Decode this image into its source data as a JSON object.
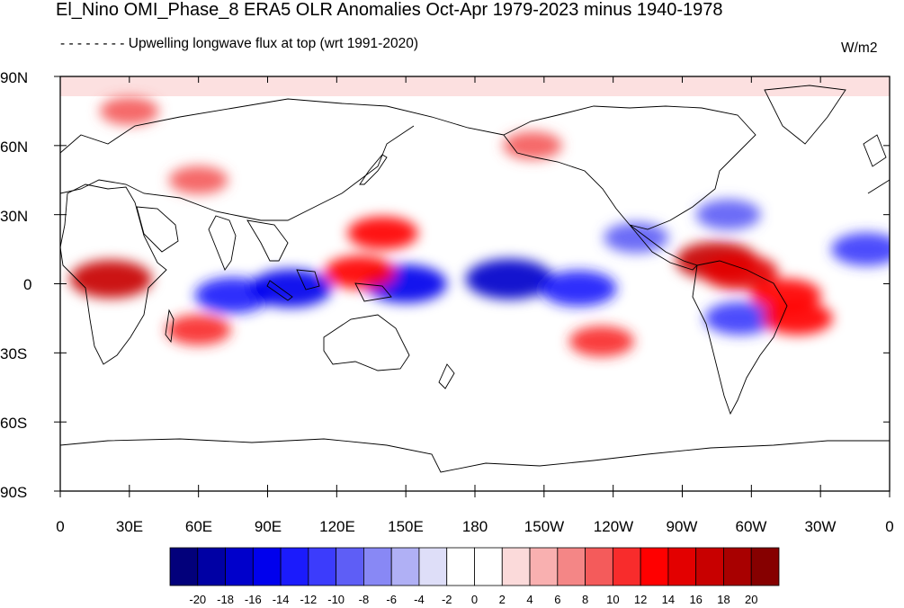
{
  "title": "El_Nino OMI_Phase_8 ERA5 OLR Anomalies Oct-Apr 1979-2023 minus 1940-1978",
  "subtitle": "- - - - - - - -  Upwelling longwave flux at top  (wrt 1991-2020)",
  "units": "W/m2",
  "lat_labels": [
    "90N",
    "60N",
    "30N",
    "0",
    "30S",
    "60S",
    "90S"
  ],
  "lon_labels": [
    "0",
    "30E",
    "60E",
    "90E",
    "120E",
    "150E",
    "180",
    "150W",
    "120W",
    "90W",
    "60W",
    "30W",
    "0"
  ],
  "colorbar": {
    "colors": [
      "#02007b",
      "#0000a4",
      "#0000cb",
      "#0000ed",
      "#1b1bfc",
      "#3c3cfc",
      "#5e5ef6",
      "#8888f5",
      "#b0b0f5",
      "#dedef8",
      "#ffffff",
      "#ffffff",
      "#fbdada",
      "#f9b0b0",
      "#f48686",
      "#f45b5b",
      "#f82c2c",
      "#ff0000",
      "#e30000",
      "#c80000",
      "#a80000",
      "#860000"
    ],
    "tick_labels": [
      "-20",
      "-18",
      "-16",
      "-14",
      "-12",
      "-10",
      "-8",
      "-6",
      "-4",
      "-2",
      "0",
      "2",
      "4",
      "6",
      "8",
      "10",
      "12",
      "14",
      "16",
      "18",
      "20"
    ]
  },
  "anomaly_features": [
    {
      "lon": 150,
      "lat": 0,
      "value": -16
    },
    {
      "lon": 195,
      "lat": 2,
      "value": -18
    },
    {
      "lon": 225,
      "lat": -2,
      "value": -14
    },
    {
      "lon": 75,
      "lat": -5,
      "value": -14
    },
    {
      "lon": 100,
      "lat": -2,
      "value": -16
    },
    {
      "lon": 250,
      "lat": 20,
      "value": -10
    },
    {
      "lon": 290,
      "lat": 30,
      "value": -10
    },
    {
      "lon": 350,
      "lat": 15,
      "value": -12
    },
    {
      "lon": 295,
      "lat": -15,
      "value": -12
    },
    {
      "lon": 22,
      "lat": 2,
      "value": 16
    },
    {
      "lon": 285,
      "lat": 10,
      "value": 16
    },
    {
      "lon": 295,
      "lat": 5,
      "value": 14
    },
    {
      "lon": 130,
      "lat": 5,
      "value": 12
    },
    {
      "lon": 140,
      "lat": 22,
      "value": 12
    },
    {
      "lon": 315,
      "lat": -5,
      "value": 12
    },
    {
      "lon": 320,
      "lat": -15,
      "value": 12
    },
    {
      "lon": 60,
      "lat": -20,
      "value": 10
    },
    {
      "lon": 235,
      "lat": -25,
      "value": 10
    },
    {
      "lon": 205,
      "lat": 60,
      "value": 8
    },
    {
      "lon": 60,
      "lat": 45,
      "value": 8
    },
    {
      "lon": 30,
      "lat": 75,
      "value": 8
    }
  ]
}
